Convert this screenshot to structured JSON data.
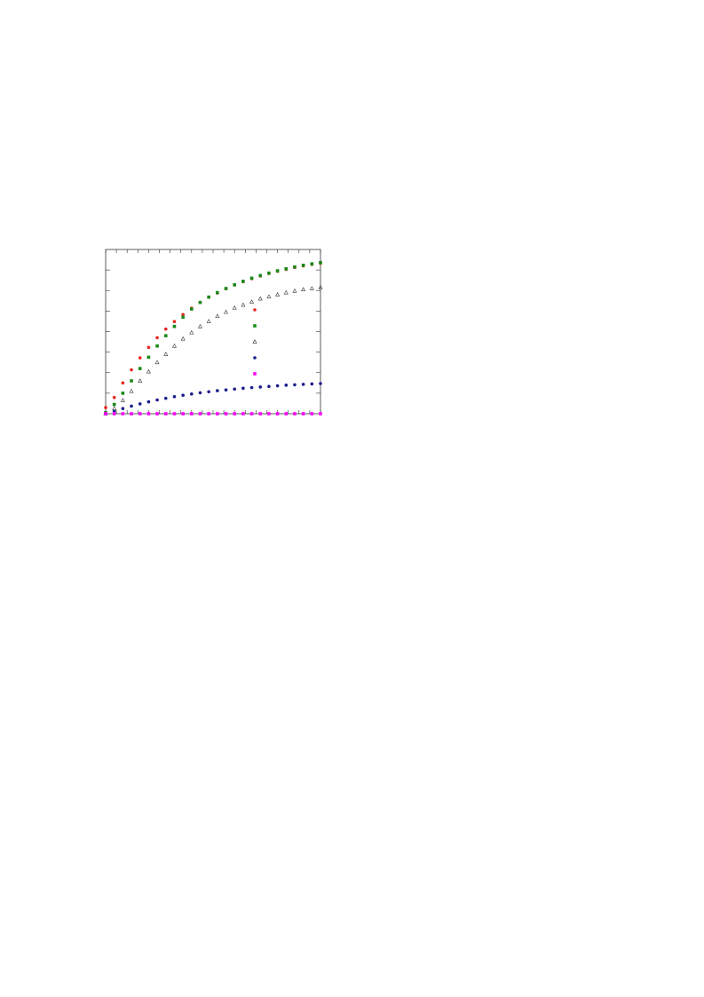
{
  "chart_data": {
    "type": "scatter",
    "x": [
      0,
      4,
      8,
      12,
      16,
      20,
      24,
      28,
      32,
      36,
      40,
      44,
      48,
      52,
      56,
      60,
      64,
      68,
      72,
      76,
      80,
      84,
      88,
      92,
      96,
      100
    ],
    "series": [
      {
        "color": "#e8251c",
        "marker": "circle",
        "values": [
          0.3,
          0.79,
          1.5,
          2.14,
          2.72,
          3.23,
          3.7,
          4.12,
          4.49,
          4.83,
          5.14,
          5.42,
          5.67,
          5.88,
          6.09,
          6.27,
          6.43,
          6.58,
          6.71,
          6.83,
          6.94,
          7.03,
          7.12,
          7.2,
          7.27,
          7.33
        ]
      },
      {
        "color": "#1a8a1a",
        "marker": "square",
        "values": [
          0.05,
          0.45,
          1.0,
          1.6,
          2.2,
          2.75,
          3.3,
          3.8,
          4.25,
          4.7,
          5.1,
          5.42,
          5.68,
          5.9,
          6.1,
          6.28,
          6.45,
          6.6,
          6.73,
          6.85,
          6.96,
          7.06,
          7.15,
          7.23,
          7.3,
          7.36
        ]
      },
      {
        "color": "#333333",
        "marker": "triangle-open",
        "values": [
          0,
          0.25,
          0.65,
          1.1,
          1.6,
          2.05,
          2.5,
          2.9,
          3.3,
          3.65,
          3.95,
          4.25,
          4.5,
          4.75,
          4.95,
          5.15,
          5.3,
          5.45,
          5.6,
          5.7,
          5.8,
          5.9,
          5.98,
          6.05,
          6.1,
          6.15
        ]
      },
      {
        "color": "#1c1c8c",
        "marker": "circle",
        "values": [
          0,
          0.12,
          0.25,
          0.37,
          0.48,
          0.58,
          0.67,
          0.75,
          0.83,
          0.9,
          0.96,
          1.02,
          1.07,
          1.12,
          1.16,
          1.2,
          1.24,
          1.27,
          1.3,
          1.33,
          1.36,
          1.39,
          1.41,
          1.43,
          1.45,
          1.47
        ]
      },
      {
        "color": "#ff00ff",
        "marker": "square",
        "values": [
          0,
          0,
          0,
          0,
          0,
          0,
          0,
          0,
          0,
          0,
          0,
          0,
          0,
          0,
          0,
          0,
          0,
          0,
          0,
          0,
          0,
          0,
          0,
          0,
          0,
          0
        ]
      }
    ],
    "xlim": [
      0,
      100
    ],
    "xticks": [
      0,
      5,
      10,
      15,
      20,
      25,
      30,
      35,
      40,
      45,
      50,
      55,
      60,
      65,
      70,
      75,
      80,
      85,
      90,
      95,
      100
    ],
    "ylim": [
      0,
      8
    ],
    "yticks": [
      1,
      2,
      3,
      4,
      5,
      6,
      7
    ],
    "legend": "right"
  }
}
